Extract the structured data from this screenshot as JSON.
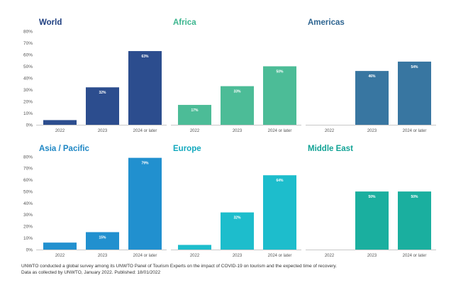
{
  "chart_data": [
    {
      "type": "bar",
      "title": "World",
      "title_color": "#1f3f80",
      "bar_color": "#2c4d8e",
      "categories": [
        "2022",
        "2023",
        "2024 or later"
      ],
      "values": [
        4,
        32,
        63
      ],
      "data_labels": [
        null,
        "32%",
        "63%"
      ],
      "ylim": [
        0,
        80
      ],
      "yticks": [
        "0%",
        "10%",
        "20%",
        "30%",
        "40%",
        "50%",
        "60%",
        "70%",
        "80%"
      ]
    },
    {
      "type": "bar",
      "title": "Africa",
      "title_color": "#3bb58e",
      "bar_color": "#4cbc97",
      "categories": [
        "2022",
        "2023",
        "2024 or later"
      ],
      "values": [
        17,
        33,
        50
      ],
      "data_labels": [
        "17%",
        "33%",
        "50%"
      ],
      "ylim": [
        0,
        80
      ]
    },
    {
      "type": "bar",
      "title": "Americas",
      "title_color": "#2e6591",
      "bar_color": "#3876a1",
      "categories": [
        "2022",
        "2023",
        "2024 or later"
      ],
      "values": [
        0,
        46,
        54
      ],
      "data_labels": [
        null,
        "46%",
        "54%"
      ],
      "ylim": [
        0,
        80
      ]
    },
    {
      "type": "bar",
      "title": "Asia / Pacific",
      "title_color": "#1d86c4",
      "bar_color": "#2190cf",
      "categories": [
        "2022",
        "2023",
        "2024 or later"
      ],
      "values": [
        6,
        15,
        79
      ],
      "data_labels": [
        null,
        "15%",
        "79%"
      ],
      "ylim": [
        0,
        80
      ],
      "yticks": [
        "0%",
        "10%",
        "20%",
        "30%",
        "40%",
        "50%",
        "60%",
        "70%",
        "80%"
      ]
    },
    {
      "type": "bar",
      "title": "Europe",
      "title_color": "#13a9be",
      "bar_color": "#1dbdcc",
      "categories": [
        "2022",
        "2023",
        "2024 or later"
      ],
      "values": [
        4,
        32,
        64
      ],
      "data_labels": [
        null,
        "32%",
        "64%"
      ],
      "ylim": [
        0,
        80
      ]
    },
    {
      "type": "bar",
      "title": "Middle East",
      "title_color": "#13a396",
      "bar_color": "#1aaf9f",
      "categories": [
        "2022",
        "2023",
        "2024 or later"
      ],
      "values": [
        0,
        50,
        50
      ],
      "data_labels": [
        null,
        "50%",
        "50%"
      ],
      "ylim": [
        0,
        80
      ]
    }
  ],
  "footnote": {
    "line1": "UNWTO conducted a global survey among its UNWTO Panel of Tourism Experts on the impact of COVID-19 on tourism and the expected time of recovery.",
    "line2": "Data as collected by UNWTO, January 2022. Published: 18/01/2022"
  }
}
